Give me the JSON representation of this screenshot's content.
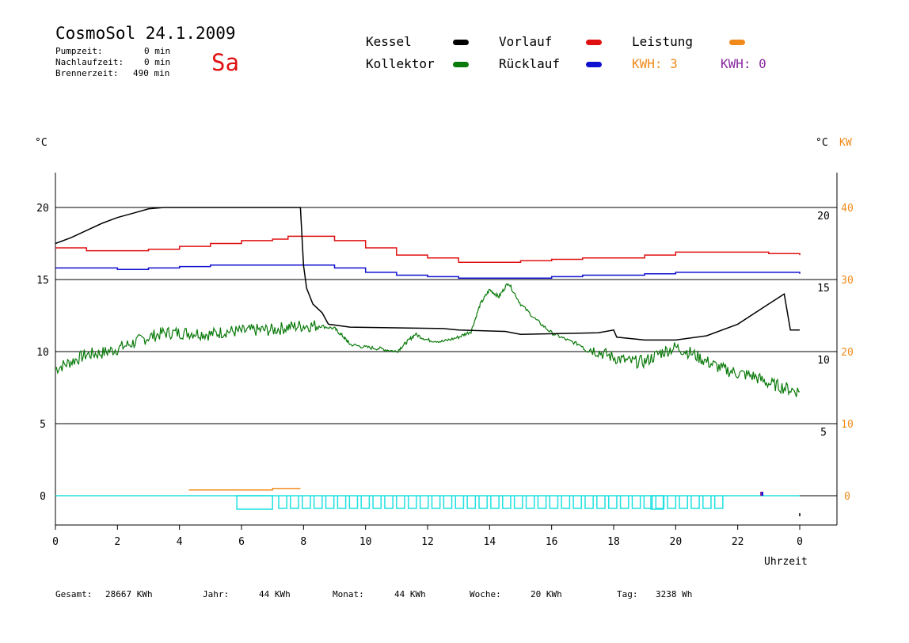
{
  "header": {
    "title": "CosmoSol 24.1.2009",
    "pumpzeit_label": "Pumpzeit:",
    "pumpzeit_value": "0 min",
    "nachlaufzeit_label": "Nachlaufzeit:",
    "nachlaufzeit_value": "0 min",
    "brennerzeit_label": "Brennerzeit:",
    "brennerzeit_value": "490 min",
    "day": "Sa"
  },
  "legend": {
    "kessel": "Kessel",
    "kollektor": "Kollektor",
    "vorlauf": "Vorlauf",
    "ruecklauf": "Rücklauf",
    "leistung": "Leistung",
    "kwh_orange": "KWH: 3",
    "kwh_purple": "KWH: 0"
  },
  "colors": {
    "kessel": "#000000",
    "kollektor": "#0a7a0a",
    "vorlauf": "#e01010",
    "ruecklauf": "#1010d0",
    "leistung": "#f08a1a",
    "pump": "#20e0e0",
    "purple": "#8a2aa0"
  },
  "axes": {
    "left_unit": "°C",
    "right_unit": "°C",
    "right_unit2": "KW",
    "xlabel": "Uhrzeit"
  },
  "footer": {
    "gesamt_label": "Gesamt:",
    "gesamt_value": "28667 KWh",
    "jahr_label": "Jahr:",
    "jahr_value": "44 KWh",
    "monat_label": "Monat:",
    "monat_value": "44 KWh",
    "woche_label": "Woche:",
    "woche_value": "20 KWh",
    "tag_label": "Tag:",
    "tag_value": "3238 Wh"
  },
  "chart_data": {
    "type": "line",
    "title": "CosmoSol 24.1.2009",
    "xlabel": "Uhrzeit",
    "ylabel": "°C",
    "xlim": [
      0,
      24
    ],
    "ylim": [
      -2,
      22
    ],
    "grid": true,
    "x_ticks": [
      "0",
      "2",
      "4",
      "6",
      "8",
      "10",
      "12",
      "14",
      "16",
      "18",
      "20",
      "22",
      "0"
    ],
    "y_left_ticks": [
      "0",
      "5",
      "10",
      "15",
      "20"
    ],
    "y_right_ticks": [
      "5",
      "10",
      "15",
      "20"
    ],
    "y_right2_ticks": [
      "0",
      "10",
      "20",
      "30",
      "40"
    ],
    "series": [
      {
        "name": "Kessel",
        "points": [
          [
            0,
            17.5
          ],
          [
            0.5,
            17.9
          ],
          [
            1,
            18.4
          ],
          [
            1.5,
            18.9
          ],
          [
            2,
            19.3
          ],
          [
            2.5,
            19.6
          ],
          [
            3,
            19.9
          ],
          [
            3.5,
            20.0
          ],
          [
            7.9,
            20.0
          ],
          [
            8.0,
            16
          ],
          [
            8.1,
            14.4
          ],
          [
            8.3,
            13.3
          ],
          [
            8.6,
            12.7
          ],
          [
            8.8,
            11.9
          ],
          [
            9.5,
            11.7
          ],
          [
            12.5,
            11.6
          ],
          [
            13.0,
            11.5
          ],
          [
            14.5,
            11.4
          ],
          [
            15,
            11.2
          ],
          [
            17.5,
            11.3
          ],
          [
            18.0,
            11.5
          ],
          [
            18.1,
            11.0
          ],
          [
            19.0,
            10.8
          ],
          [
            20,
            10.8
          ],
          [
            21,
            11.1
          ],
          [
            22,
            11.9
          ],
          [
            23,
            13.3
          ],
          [
            23.5,
            14.0
          ],
          [
            23.7,
            11.5
          ],
          [
            24,
            11.5
          ]
        ]
      },
      {
        "name": "Vorlauf",
        "points": [
          [
            0,
            17.2
          ],
          [
            1,
            17.0
          ],
          [
            2,
            17.0
          ],
          [
            3,
            17.1
          ],
          [
            4,
            17.3
          ],
          [
            5,
            17.5
          ],
          [
            6,
            17.7
          ],
          [
            7,
            17.8
          ],
          [
            7.5,
            18.0
          ],
          [
            8,
            18.0
          ],
          [
            8.5,
            18.0
          ],
          [
            9,
            17.7
          ],
          [
            10,
            17.2
          ],
          [
            11,
            16.7
          ],
          [
            12,
            16.5
          ],
          [
            13,
            16.2
          ],
          [
            14,
            16.2
          ],
          [
            15,
            16.3
          ],
          [
            16,
            16.4
          ],
          [
            17,
            16.5
          ],
          [
            18,
            16.5
          ],
          [
            19,
            16.7
          ],
          [
            20,
            16.9
          ],
          [
            21,
            16.9
          ],
          [
            22,
            16.9
          ],
          [
            23,
            16.8
          ],
          [
            24,
            16.7
          ]
        ]
      },
      {
        "name": "Rücklauf",
        "points": [
          [
            0,
            15.8
          ],
          [
            1,
            15.8
          ],
          [
            2,
            15.7
          ],
          [
            3,
            15.8
          ],
          [
            4,
            15.9
          ],
          [
            5,
            16.0
          ],
          [
            6,
            16.0
          ],
          [
            7,
            16.0
          ],
          [
            8,
            16.0
          ],
          [
            9,
            15.8
          ],
          [
            10,
            15.5
          ],
          [
            11,
            15.3
          ],
          [
            12,
            15.2
          ],
          [
            13,
            15.1
          ],
          [
            14,
            15.1
          ],
          [
            15,
            15.1
          ],
          [
            16,
            15.2
          ],
          [
            17,
            15.3
          ],
          [
            18,
            15.3
          ],
          [
            19,
            15.4
          ],
          [
            20,
            15.5
          ],
          [
            21,
            15.5
          ],
          [
            22,
            15.5
          ],
          [
            23,
            15.5
          ],
          [
            24,
            15.4
          ]
        ]
      },
      {
        "name": "Kollektor",
        "points": [
          [
            0,
            8.8
          ],
          [
            0.5,
            9.3
          ],
          [
            1,
            9.8
          ],
          [
            1.5,
            9.9
          ],
          [
            2,
            10.2
          ],
          [
            2.5,
            10.6
          ],
          [
            3,
            11.0
          ],
          [
            3.5,
            11.3
          ],
          [
            4,
            11.3
          ],
          [
            4.5,
            11.3
          ],
          [
            5,
            11.2
          ],
          [
            5.5,
            11.4
          ],
          [
            6,
            11.4
          ],
          [
            6.5,
            11.5
          ],
          [
            7,
            11.5
          ],
          [
            7.5,
            11.7
          ],
          [
            8,
            11.8
          ],
          [
            8.5,
            11.8
          ],
          [
            9,
            11.6
          ],
          [
            9.3,
            11.0
          ],
          [
            9.5,
            10.5
          ],
          [
            10,
            10.3
          ],
          [
            10.5,
            10.2
          ],
          [
            11,
            10.0
          ],
          [
            11.3,
            10.6
          ],
          [
            11.6,
            11.2
          ],
          [
            12,
            10.8
          ],
          [
            12.5,
            10.7
          ],
          [
            13,
            11.0
          ],
          [
            13.4,
            11.4
          ],
          [
            13.7,
            13.3
          ],
          [
            14,
            14.3
          ],
          [
            14.3,
            13.8
          ],
          [
            14.6,
            14.8
          ],
          [
            15,
            13.3
          ],
          [
            15.5,
            12.2
          ],
          [
            16,
            11.3
          ],
          [
            16.5,
            10.8
          ],
          [
            17,
            10.4
          ],
          [
            17.5,
            10.0
          ],
          [
            18,
            9.6
          ],
          [
            18.5,
            9.3
          ],
          [
            19,
            9.3
          ],
          [
            19.5,
            9.9
          ],
          [
            20,
            10.3
          ],
          [
            20.5,
            9.9
          ],
          [
            21,
            9.3
          ],
          [
            21.5,
            8.8
          ],
          [
            22,
            8.5
          ],
          [
            22.5,
            8.3
          ],
          [
            23,
            7.8
          ],
          [
            23.5,
            7.5
          ],
          [
            24,
            7.2
          ]
        ]
      },
      {
        "name": "Leistung",
        "points": [
          [
            4.3,
            0.4
          ],
          [
            7.0,
            0.4
          ],
          [
            7.0,
            0.5
          ],
          [
            7.9,
            0.5
          ]
        ]
      }
    ]
  }
}
